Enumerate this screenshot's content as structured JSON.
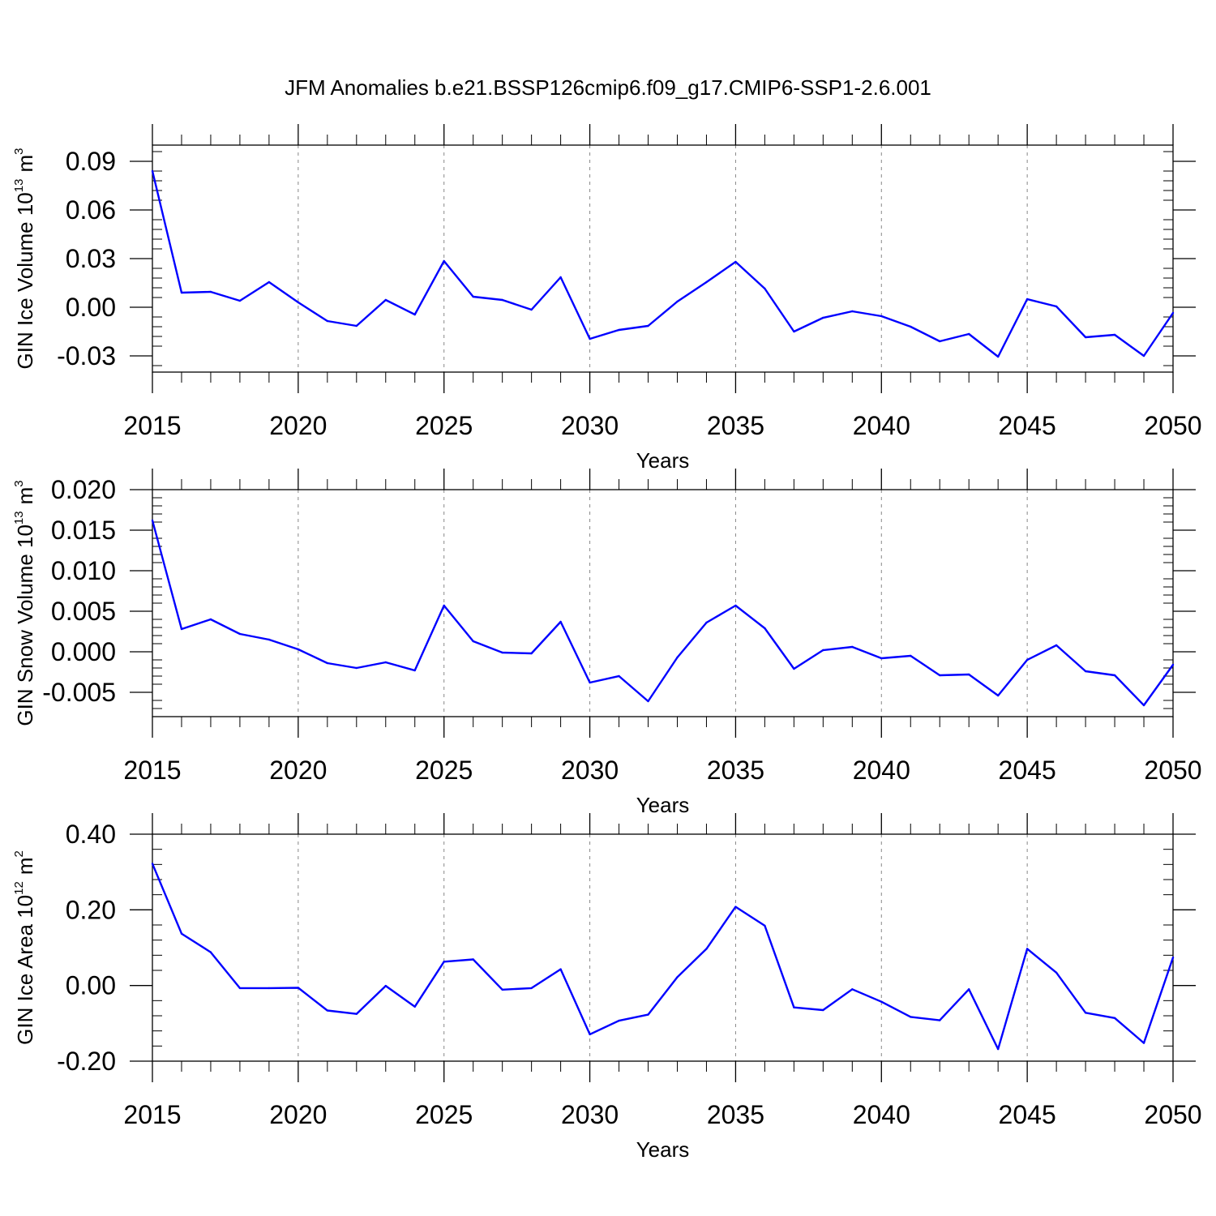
{
  "title": "JFM Anomalies b.e21.BSSP126cmip6.f09_g17.CMIP6-SSP1-2.6.001",
  "chart_data": [
    {
      "type": "line",
      "ylabel": "GIN Ice Volume 10",
      "ylabel_exp": "13",
      "ylabel_unit": "m",
      "ylabel_unit_exp": "3",
      "xlabel": "Years",
      "xlim": [
        2015,
        2050
      ],
      "ylim": [
        -0.04,
        0.1
      ],
      "yticks": [
        -0.03,
        0.0,
        0.03,
        0.06,
        0.09
      ],
      "ytick_labels": [
        "-0.03",
        "0.00",
        "0.03",
        "0.06",
        "0.09"
      ],
      "xticks": [
        2015,
        2020,
        2025,
        2030,
        2035,
        2040,
        2045,
        2050
      ],
      "xtick_labels": [
        "2015",
        "2020",
        "2025",
        "2030",
        "2035",
        "2040",
        "2045",
        "2050"
      ],
      "grid": "dashed vertical at major x ticks",
      "line_color": "#0000ff",
      "x": [
        2015,
        2016,
        2017,
        2018,
        2019,
        2020,
        2021,
        2022,
        2023,
        2024,
        2025,
        2026,
        2027,
        2028,
        2029,
        2030,
        2031,
        2032,
        2033,
        2034,
        2035,
        2036,
        2037,
        2038,
        2039,
        2040,
        2041,
        2042,
        2043,
        2044,
        2045,
        2046,
        2047,
        2048,
        2049,
        2050
      ],
      "y": [
        0.084,
        0.009,
        0.0095,
        0.004,
        0.0155,
        0.003,
        -0.0085,
        -0.0115,
        0.0045,
        -0.0045,
        0.0285,
        0.0065,
        0.0045,
        -0.0015,
        0.0185,
        -0.0195,
        -0.014,
        -0.0115,
        0.0035,
        0.0155,
        0.028,
        0.0115,
        -0.015,
        -0.0065,
        -0.0025,
        -0.0055,
        -0.012,
        -0.021,
        -0.0165,
        -0.0305,
        0.005,
        0.0005,
        -0.0185,
        -0.017,
        -0.03,
        -0.0035
      ]
    },
    {
      "type": "line",
      "ylabel": "GIN Snow Volume 10",
      "ylabel_exp": "13",
      "ylabel_unit": "m",
      "ylabel_unit_exp": "3",
      "xlabel": "Years",
      "xlim": [
        2015,
        2050
      ],
      "ylim": [
        -0.008,
        0.02
      ],
      "yticks": [
        -0.005,
        0.0,
        0.005,
        0.01,
        0.015,
        0.02
      ],
      "ytick_labels": [
        "-0.005",
        "0.000",
        "0.005",
        "0.010",
        "0.015",
        "0.020"
      ],
      "xticks": [
        2015,
        2020,
        2025,
        2030,
        2035,
        2040,
        2045,
        2050
      ],
      "xtick_labels": [
        "2015",
        "2020",
        "2025",
        "2030",
        "2035",
        "2040",
        "2045",
        "2050"
      ],
      "grid": "dashed vertical at major x ticks",
      "line_color": "#0000ff",
      "x": [
        2015,
        2016,
        2017,
        2018,
        2019,
        2020,
        2021,
        2022,
        2023,
        2024,
        2025,
        2026,
        2027,
        2028,
        2029,
        2030,
        2031,
        2032,
        2033,
        2034,
        2035,
        2036,
        2037,
        2038,
        2039,
        2040,
        2041,
        2042,
        2043,
        2044,
        2045,
        2046,
        2047,
        2048,
        2049,
        2050
      ],
      "y": [
        0.0162,
        0.0028,
        0.004,
        0.0022,
        0.0015,
        0.0003,
        -0.0014,
        -0.002,
        -0.0013,
        -0.0023,
        0.0057,
        0.0013,
        -0.0001,
        -0.0002,
        0.0037,
        -0.0038,
        -0.003,
        -0.0061,
        -0.0007,
        0.0036,
        0.0057,
        0.0029,
        -0.0021,
        0.0002,
        0.0006,
        -0.0008,
        -0.0005,
        -0.0029,
        -0.0028,
        -0.0054,
        -0.001,
        0.0008,
        -0.0024,
        -0.0029,
        -0.0066,
        -0.0016
      ]
    },
    {
      "type": "line",
      "ylabel": "GIN Ice Area 10",
      "ylabel_exp": "12",
      "ylabel_unit": "m",
      "ylabel_unit_exp": "2",
      "xlabel": "Years",
      "xlim": [
        2015,
        2050
      ],
      "ylim": [
        -0.2,
        0.4
      ],
      "yticks": [
        -0.2,
        0.0,
        0.2,
        0.4
      ],
      "ytick_labels": [
        "-0.20",
        "0.00",
        "0.20",
        "0.40"
      ],
      "xticks": [
        2015,
        2020,
        2025,
        2030,
        2035,
        2040,
        2045,
        2050
      ],
      "xtick_labels": [
        "2015",
        "2020",
        "2025",
        "2030",
        "2035",
        "2040",
        "2045",
        "2050"
      ],
      "grid": "dashed vertical at major x ticks",
      "line_color": "#0000ff",
      "x": [
        2015,
        2016,
        2017,
        2018,
        2019,
        2020,
        2021,
        2022,
        2023,
        2024,
        2025,
        2026,
        2027,
        2028,
        2029,
        2030,
        2031,
        2032,
        2033,
        2034,
        2035,
        2036,
        2037,
        2038,
        2039,
        2040,
        2041,
        2042,
        2043,
        2044,
        2045,
        2046,
        2047,
        2048,
        2049,
        2050
      ],
      "y": [
        0.322,
        0.137,
        0.088,
        -0.007,
        -0.007,
        -0.006,
        -0.066,
        -0.075,
        -0.001,
        -0.056,
        0.063,
        0.069,
        -0.011,
        -0.007,
        0.043,
        -0.129,
        -0.093,
        -0.077,
        0.022,
        0.097,
        0.208,
        0.158,
        -0.058,
        -0.065,
        -0.01,
        -0.043,
        -0.083,
        -0.092,
        -0.01,
        -0.168,
        0.097,
        0.034,
        -0.072,
        -0.086,
        -0.152,
        0.074
      ]
    }
  ]
}
